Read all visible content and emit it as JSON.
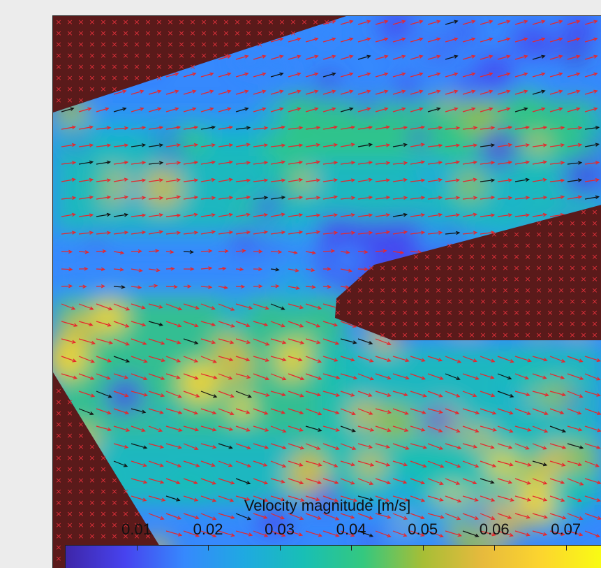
{
  "chart_data": {
    "type": "heatmap",
    "colormap": "parula",
    "overlay": "velocity vector field (quiver)",
    "vector_colors": {
      "valid": "#e8262b",
      "interpolated": "#111111"
    },
    "mask": {
      "color": "#5a1a1a",
      "marker": "×",
      "marker_color": "#e0303a"
    },
    "colorbar": {
      "label": "Velocity magnitude [m/s]",
      "ticks": [
        0.01,
        0.02,
        0.03,
        0.04,
        0.05,
        0.06,
        0.07
      ],
      "tick_labels": [
        "0.01",
        "0.02",
        "0.03",
        "0.04",
        "0.05",
        "0.06",
        "0.07"
      ],
      "range": [
        0.0,
        0.075
      ],
      "location": "bottom"
    },
    "colors": [
      "#3e26a8",
      "#4743ef",
      "#3689fd",
      "#1fa9e1",
      "#18bfb5",
      "#34c87f",
      "#a6be36",
      "#e7ba3d",
      "#fcd52e",
      "#f9fb14"
    ]
  }
}
